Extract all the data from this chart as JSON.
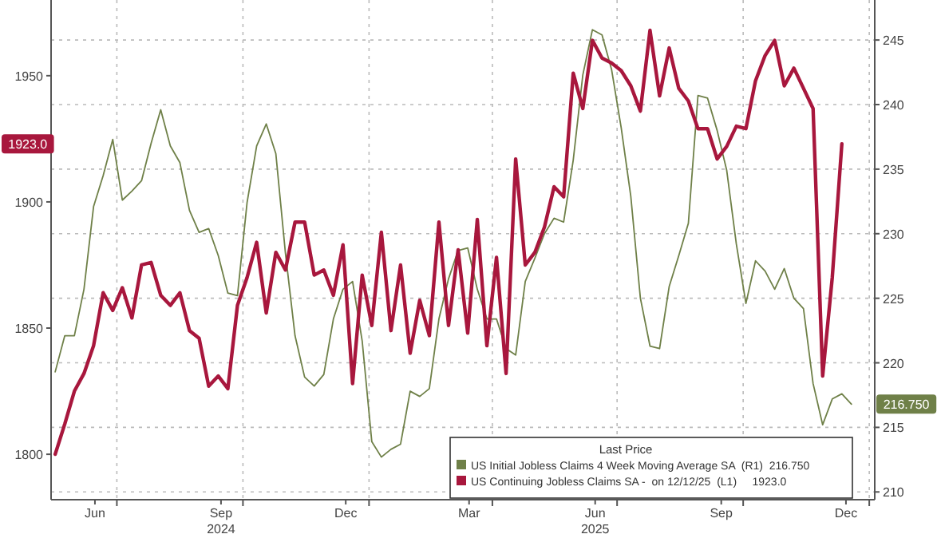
{
  "chart_data": {
    "type": "line",
    "xlim": [
      "2024-05-14",
      "2026-01-05"
    ],
    "xticks": [
      {
        "value": "2024-06-15",
        "label": "Jun"
      },
      {
        "value": "2024-07-01",
        "label": null
      },
      {
        "value": "2024-09-15",
        "label": "Sep\n2024"
      },
      {
        "value": "2024-10-01",
        "label": null
      },
      {
        "value": "2024-12-15",
        "label": "Dec"
      },
      {
        "value": "2025-01-01",
        "label": null
      },
      {
        "value": "2025-03-15",
        "label": "Mar"
      },
      {
        "value": "2025-04-01",
        "label": null
      },
      {
        "value": "2025-06-15",
        "label": "Jun\n2025"
      },
      {
        "value": "2025-07-01",
        "label": null
      },
      {
        "value": "2025-09-15",
        "label": "Sep"
      },
      {
        "value": "2025-10-01",
        "label": null
      },
      {
        "value": "2025-12-15",
        "label": "Dec"
      },
      {
        "value": "2026-01-01",
        "label": null
      }
    ],
    "ylim": [
      1782,
      1980
    ],
    "yticks": [
      1800,
      1850,
      1900,
      1950
    ],
    "y2lim": [
      209.4,
      248.1
    ],
    "y2ticks": [
      210,
      215,
      220,
      225,
      230,
      235,
      240,
      245
    ],
    "grid": true,
    "legend": "bottom right",
    "legend_title": "Last Price",
    "annotations": [
      "216.750",
      "1923.0"
    ],
    "series": [
      {
        "name": "US Initial Jobless Claims 4 Week Moving Average SA  (R1)  216.750",
        "color": "#6f8048",
        "axis": "y2",
        "x": [
          "2024-05-17",
          "2024-05-24",
          "2024-05-31",
          "2024-06-07",
          "2024-06-14",
          "2024-06-21",
          "2024-06-28",
          "2024-07-05",
          "2024-07-12",
          "2024-07-19",
          "2024-07-26",
          "2024-08-02",
          "2024-08-09",
          "2024-08-16",
          "2024-08-23",
          "2024-08-30",
          "2024-09-06",
          "2024-09-13",
          "2024-09-20",
          "2024-09-27",
          "2024-10-04",
          "2024-10-11",
          "2024-10-18",
          "2024-10-25",
          "2024-11-01",
          "2024-11-08",
          "2024-11-15",
          "2024-11-22",
          "2024-11-29",
          "2024-12-06",
          "2024-12-13",
          "2024-12-20",
          "2024-12-27",
          "2025-01-03",
          "2025-01-10",
          "2025-01-17",
          "2025-01-24",
          "2025-01-31",
          "2025-02-07",
          "2025-02-14",
          "2025-02-21",
          "2025-02-28",
          "2025-03-07",
          "2025-03-14",
          "2025-03-21",
          "2025-03-28",
          "2025-04-04",
          "2025-04-11",
          "2025-04-18",
          "2025-04-25",
          "2025-05-02",
          "2025-05-09",
          "2025-05-16",
          "2025-05-23",
          "2025-05-30",
          "2025-06-06",
          "2025-06-13",
          "2025-06-20",
          "2025-06-27",
          "2025-07-04",
          "2025-07-11",
          "2025-07-18",
          "2025-07-25",
          "2025-08-01",
          "2025-08-08",
          "2025-08-15",
          "2025-08-22",
          "2025-08-29",
          "2025-09-05",
          "2025-09-12",
          "2025-09-19",
          "2025-09-26",
          "2025-10-03",
          "2025-10-10",
          "2025-10-17",
          "2025-10-24",
          "2025-10-31",
          "2025-11-07",
          "2025-11-14",
          "2025-11-21",
          "2025-11-28",
          "2025-12-05",
          "2025-12-12",
          "2025-12-19"
        ],
        "values": [
          219.3,
          222.1,
          222.1,
          225.7,
          232.1,
          234.5,
          237.3,
          232.6,
          233.3,
          234.1,
          237.0,
          239.6,
          236.8,
          235.5,
          231.8,
          230.1,
          230.4,
          228.3,
          225.4,
          225.2,
          232.4,
          236.8,
          238.5,
          236.2,
          228.5,
          222.1,
          218.9,
          218.2,
          219.1,
          223.4,
          225.7,
          226.3,
          221.7,
          213.9,
          212.7,
          213.3,
          213.7,
          217.8,
          217.4,
          218.0,
          223.4,
          226.5,
          228.7,
          228.9,
          225.7,
          223.4,
          223.4,
          221.1,
          220.6,
          226.3,
          228.1,
          230.0,
          231.2,
          230.9,
          235.7,
          242.3,
          245.8,
          245.4,
          242.7,
          238.2,
          232.9,
          225.0,
          221.3,
          221.1,
          225.9,
          228.3,
          230.8,
          240.7,
          240.5,
          238.0,
          234.9,
          229.2,
          224.6,
          227.9,
          227.1,
          225.7,
          227.3,
          225.0,
          224.2,
          218.4,
          215.2,
          217.2,
          217.6,
          216.8
        ]
      },
      {
        "name": "US Continuing Jobless Claims SA -  on 12/12/25  (L1)     1923.0",
        "color": "#a8173d",
        "x": [
          "2024-05-17",
          "2024-05-24",
          "2024-05-31",
          "2024-06-07",
          "2024-06-14",
          "2024-06-21",
          "2024-06-28",
          "2024-07-05",
          "2024-07-12",
          "2024-07-19",
          "2024-07-26",
          "2024-08-02",
          "2024-08-09",
          "2024-08-16",
          "2024-08-23",
          "2024-08-30",
          "2024-09-06",
          "2024-09-13",
          "2024-09-20",
          "2024-09-27",
          "2024-10-04",
          "2024-10-11",
          "2024-10-18",
          "2024-10-25",
          "2024-11-01",
          "2024-11-08",
          "2024-11-15",
          "2024-11-22",
          "2024-11-29",
          "2024-12-06",
          "2024-12-13",
          "2024-12-20",
          "2024-12-27",
          "2025-01-03",
          "2025-01-10",
          "2025-01-17",
          "2025-01-24",
          "2025-01-31",
          "2025-02-07",
          "2025-02-14",
          "2025-02-21",
          "2025-02-28",
          "2025-03-07",
          "2025-03-14",
          "2025-03-21",
          "2025-03-28",
          "2025-04-04",
          "2025-04-11",
          "2025-04-18",
          "2025-04-25",
          "2025-05-02",
          "2025-05-09",
          "2025-05-16",
          "2025-05-23",
          "2025-05-30",
          "2025-06-06",
          "2025-06-13",
          "2025-06-20",
          "2025-06-27",
          "2025-07-04",
          "2025-07-11",
          "2025-07-18",
          "2025-07-25",
          "2025-08-01",
          "2025-08-08",
          "2025-08-15",
          "2025-08-22",
          "2025-08-29",
          "2025-09-05",
          "2025-09-12",
          "2025-09-19",
          "2025-09-26",
          "2025-10-03",
          "2025-10-10",
          "2025-10-17",
          "2025-10-24",
          "2025-10-31",
          "2025-11-07",
          "2025-11-14",
          "2025-11-21",
          "2025-11-28",
          "2025-12-05",
          "2025-12-12"
        ],
        "values": [
          1800,
          1812,
          1825,
          1832,
          1843,
          1864,
          1857,
          1866,
          1854,
          1875,
          1876,
          1863,
          1859,
          1864,
          1849,
          1846,
          1827,
          1831,
          1826,
          1859,
          1870,
          1884,
          1856,
          1880,
          1873,
          1892,
          1892,
          1871,
          1873,
          1863,
          1883,
          1828,
          1871,
          1851,
          1888,
          1849,
          1875,
          1840,
          1861,
          1847,
          1892,
          1851,
          1881,
          1848,
          1893,
          1843,
          1878,
          1832,
          1917,
          1875,
          1880,
          1890,
          1906,
          1902,
          1951,
          1937,
          1964,
          1957,
          1955,
          1952,
          1946,
          1936,
          1968,
          1942,
          1961,
          1945,
          1940,
          1929,
          1929,
          1917,
          1922,
          1930,
          1929,
          1948,
          1958,
          1964,
          1946,
          1953,
          1945,
          1937,
          1831,
          1870,
          1923
        ]
      }
    ]
  }
}
